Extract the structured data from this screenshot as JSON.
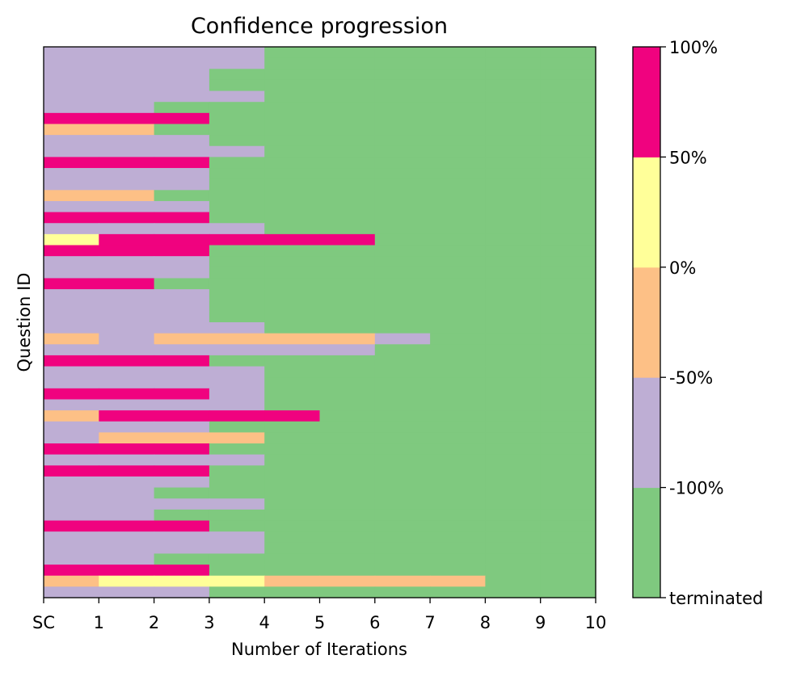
{
  "chart_data": {
    "type": "heatmap",
    "title": "Confidence progression",
    "xlabel": "Number of Iterations",
    "ylabel": "Question ID",
    "x_ticks": [
      "SC",
      "1",
      "2",
      "3",
      "4",
      "5",
      "6",
      "7",
      "8",
      "9",
      "10"
    ],
    "colorbar": {
      "ticks": [
        "terminated",
        "-100%",
        "-50%",
        "0%",
        "50%",
        "100%"
      ],
      "categories": [
        {
          "key": "T",
          "label": "terminated",
          "color": "#7fc97f"
        },
        {
          "key": "P",
          "label": "-100%",
          "color": "#beaed4"
        },
        {
          "key": "O",
          "label": "-50%",
          "color": "#fdc086"
        },
        {
          "key": "Y",
          "label": "0%",
          "color": "#ffff99"
        },
        {
          "key": "M",
          "label": "50%",
          "color": "#f0027f"
        }
      ]
    },
    "rows": [
      "PPPPT",
      "PPPPT",
      "PPPTT",
      "PPPTT",
      "PPPPT",
      "PPTTT",
      "MMMTT",
      "OOTTT",
      "PPPTT",
      "PPPPT",
      "MMMTT",
      "PPPTT",
      "PPPTT",
      "OOTTT",
      "PPPTT",
      "MMMTT",
      "PPPPT",
      "YMMMMMT",
      "MMMTT",
      "PPPTT",
      "PPPTT",
      "MMTTT",
      "PPPTT",
      "PPPTT",
      "PPPTT",
      "PPPPT",
      "OPOOOOPT",
      "PPPPPPT",
      "MMMTT",
      "PPPPT",
      "PPPPT",
      "MMMPT",
      "PPPPT",
      "OMMMMT",
      "PPPTT",
      "POOOT",
      "MMMTT",
      "PPPPT",
      "MMMTT",
      "PPPTT",
      "PPTTT",
      "PPPPT",
      "PPTTT",
      "MMMTT",
      "PPPPT",
      "PPPPT",
      "PPTTT",
      "MMMTT",
      "OYYYOOOOT",
      "PPPTT"
    ]
  }
}
